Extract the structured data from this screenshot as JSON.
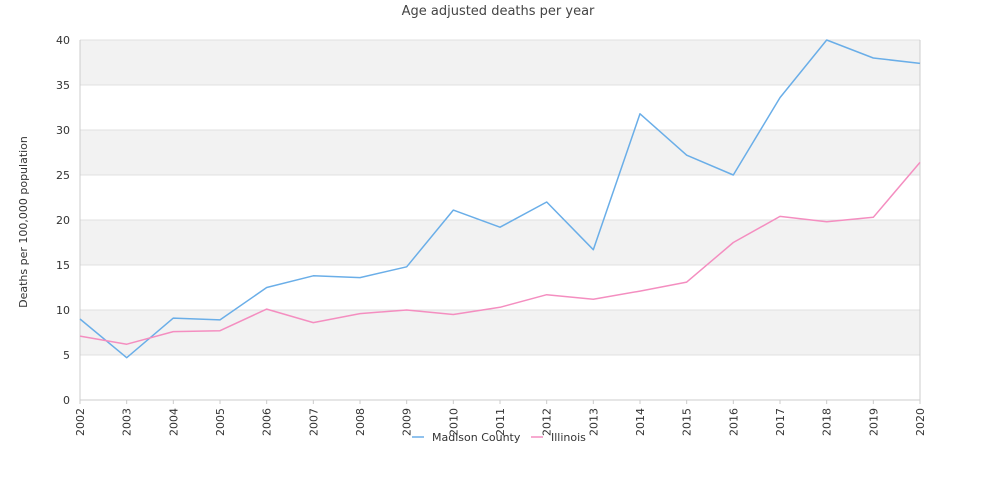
{
  "chart_data": {
    "type": "line",
    "title": "Age adjusted deaths per year",
    "xlabel": "",
    "ylabel": "Deaths per 100,000 population",
    "x": [
      "2002",
      "2003",
      "2004",
      "2005",
      "2006",
      "2007",
      "2008",
      "2009",
      "2010",
      "2011",
      "2012",
      "2013",
      "2014",
      "2015",
      "2016",
      "2017",
      "2018",
      "2019",
      "2020"
    ],
    "ylim": [
      0,
      40
    ],
    "yticks": [
      0,
      5,
      10,
      15,
      20,
      25,
      30,
      35,
      40
    ],
    "grid": "horizontal bands",
    "legend_position": "bottom",
    "series": [
      {
        "name": "Madison County",
        "color": "#6aaee8",
        "values": [
          9.0,
          4.7,
          9.1,
          8.9,
          12.5,
          13.8,
          13.6,
          14.8,
          21.1,
          19.2,
          22.0,
          16.7,
          31.8,
          27.2,
          25.0,
          33.6,
          40.0,
          38.0,
          37.4
        ]
      },
      {
        "name": "Illinois",
        "color": "#f48ec0",
        "values": [
          7.1,
          6.2,
          7.6,
          7.7,
          10.1,
          8.6,
          9.6,
          10.0,
          9.5,
          10.3,
          11.7,
          11.2,
          12.1,
          13.1,
          17.5,
          20.4,
          19.8,
          20.3,
          26.4
        ]
      }
    ],
    "colors": {
      "band": "#f2f2f2",
      "gridline": "#e0e0e0",
      "axis": "#cccccc"
    }
  }
}
